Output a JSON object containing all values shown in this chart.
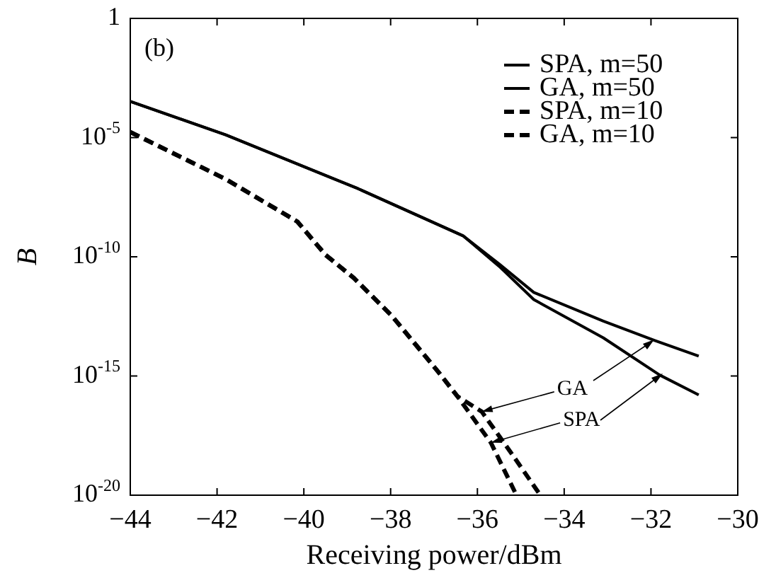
{
  "chart_data": {
    "type": "line",
    "xlabel": "Receiving power/dBm",
    "ylabel": "B",
    "xlim": [
      -44,
      -30
    ],
    "xticks": [
      -44,
      -42,
      -40,
      -38,
      -36,
      -34,
      -32,
      -30
    ],
    "ylim": [
      1e-20,
      1
    ],
    "log": "y",
    "yticks": [
      {
        "value": 1e-20,
        "label": "10$^{-20}$"
      },
      {
        "value": 1e-15,
        "label": "10$^{-15}$"
      },
      {
        "value": 1e-10,
        "label": "10$^{-10}$"
      },
      {
        "value": 1e-05,
        "label": "10$^{-5}$"
      },
      1
    ],
    "grid": false,
    "legend": "top right",
    "marker": "none",
    "annotations": [
      "(b)",
      {
        "text": "GA",
        "x": -35.9,
        "y": 3.2e-17
      },
      {
        "text": "SPA",
        "x": -35.69,
        "y": 1.6e-18
      }
    ],
    "series": [
      {
        "name": "SPA, m=50",
        "color": "#000000",
        "line_style": "solid",
        "x": [
          -44,
          -41.8,
          -38.75,
          -36.33,
          -35.5,
          -34.7,
          -33.1,
          -31.8,
          -30.9
        ],
        "values": [
          0.00033,
          1.3e-05,
          7.2e-08,
          7.6e-10,
          4e-11,
          1.6e-12,
          4e-14,
          1.1e-15,
          1.6e-16
        ]
      },
      {
        "name": "GA, m=50",
        "color": "#000000",
        "line_style": "solid",
        "x": [
          -44,
          -41.8,
          -38.75,
          -36.33,
          -35.5,
          -34.7,
          -33.1,
          -31.9,
          -30.9
        ],
        "values": [
          0.00033,
          1.3e-05,
          7.2e-08,
          7.6e-10,
          5e-11,
          3.2e-12,
          2e-13,
          3e-14,
          6.8e-15
        ]
      },
      {
        "name": "SPA, m=10",
        "color": "#000000",
        "line_style": "dashed",
        "x": [
          -44,
          -41.8,
          -40.15,
          -39.5,
          -38.85,
          -37.97,
          -36.89,
          -36.46,
          -35.69,
          -35.1
        ],
        "values": [
          1.7e-05,
          1.8e-07,
          3e-09,
          1.2e-10,
          1.3e-11,
          3.3e-13,
          1.4e-15,
          1.4e-16,
          1.6e-18,
          1e-20
        ]
      },
      {
        "name": "GA, m=10",
        "color": "#000000",
        "line_style": "dashed",
        "x": [
          -44,
          -41.8,
          -40.15,
          -39.5,
          -38.85,
          -37.97,
          -36.89,
          -36.46,
          -35.9,
          -35.2,
          -34.55
        ],
        "values": [
          1.7e-05,
          1.8e-07,
          3e-09,
          1.2e-10,
          1.3e-11,
          3.3e-13,
          1.4e-15,
          1.4e-16,
          3.2e-17,
          5.2e-19,
          1e-20
        ]
      }
    ]
  }
}
